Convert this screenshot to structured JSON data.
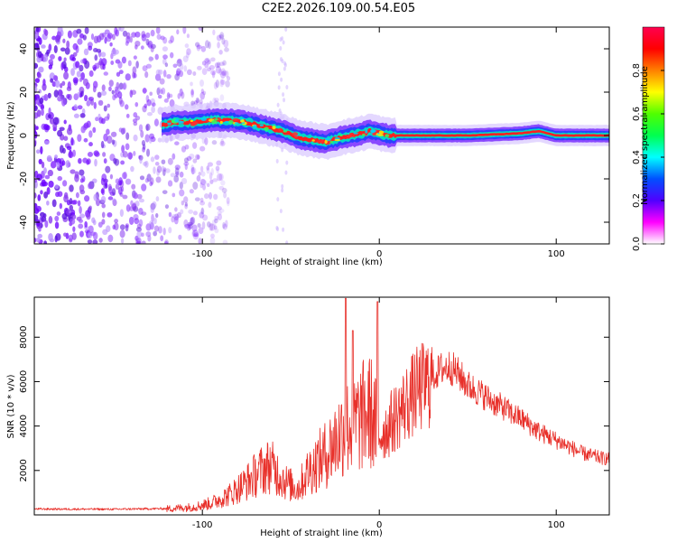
{
  "title": "C2E2.2026.109.00.54.E05",
  "chart_data": [
    {
      "type": "heatmap",
      "name": "spectrogram",
      "xlabel": "Height of straight line (km)",
      "ylabel": "Frequency (Hz)",
      "xlim": [
        -195,
        130
      ],
      "ylim": [
        -50,
        50
      ],
      "xticks": [
        -100,
        0,
        100
      ],
      "xtick_labels": [
        "-100",
        "0",
        "100"
      ],
      "yticks": [
        -40,
        -20,
        0,
        20,
        40
      ],
      "ytick_labels": [
        "-40",
        "-20",
        "0",
        "20",
        "40"
      ],
      "ridge": {
        "x": [
          -123,
          -115,
          -105,
          -95,
          -85,
          -75,
          -65,
          -55,
          -45,
          -38,
          -30,
          -22,
          -15,
          -10,
          -5,
          0,
          5,
          20,
          50,
          80,
          90,
          95,
          100,
          130
        ],
        "y": [
          5,
          6,
          6,
          7,
          7,
          6,
          4,
          2,
          -1,
          -2,
          -3,
          -1,
          0,
          1,
          2,
          1,
          0,
          0,
          0,
          1,
          2,
          1,
          0,
          0
        ]
      },
      "noise_region_x": [
        -195,
        -85
      ]
    },
    {
      "type": "colorbar",
      "name": "amplitude-colorbar",
      "label": "Normalized spectral amplitude",
      "range": [
        0,
        1
      ],
      "ticks": [
        0.0,
        0.2,
        0.4,
        0.6,
        0.8
      ],
      "tick_labels": [
        "0.0",
        "0.2",
        "0.4",
        "0.6",
        "0.8"
      ],
      "colors": [
        "#ffffff",
        "#ff00ff",
        "#5000ff",
        "#0050ff",
        "#00ffff",
        "#00ff50",
        "#50ff00",
        "#ffff00",
        "#ff8000",
        "#ff0000",
        "#ff0050"
      ]
    },
    {
      "type": "line",
      "name": "snr-series",
      "xlabel": "Height of straight line (km)",
      "ylabel": "SNR (10 * v/v)",
      "xlim": [
        -195,
        130
      ],
      "ylim": [
        0,
        9800
      ],
      "xticks": [
        -100,
        0,
        100
      ],
      "xtick_labels": [
        "-100",
        "0",
        "100"
      ],
      "yticks": [
        2000,
        4000,
        6000,
        8000
      ],
      "ytick_labels": [
        "2000",
        "4000",
        "6000",
        "8000"
      ],
      "color": "#e8302a",
      "envelope": {
        "x": [
          -195,
          -150,
          -120,
          -105,
          -95,
          -85,
          -75,
          -68,
          -62,
          -58,
          -52,
          -46,
          -40,
          -35,
          -30,
          -25,
          -20,
          -15,
          -10,
          -5,
          0,
          5,
          10,
          20,
          30,
          35,
          40,
          45,
          50,
          55,
          60,
          65,
          70,
          75,
          80,
          85,
          90,
          95,
          100,
          105,
          110,
          115,
          120,
          125,
          130
        ],
        "y": [
          270,
          260,
          290,
          380,
          560,
          950,
          1550,
          2050,
          2350,
          2050,
          1500,
          1250,
          2100,
          2500,
          2900,
          3500,
          4100,
          4250,
          4650,
          4950,
          3700,
          4100,
          4650,
          5700,
          6300,
          6650,
          6750,
          6400,
          5900,
          5650,
          5400,
          5100,
          4900,
          4600,
          4400,
          4100,
          3800,
          3600,
          3400,
          3200,
          3000,
          2800,
          2700,
          2600,
          2550
        ]
      },
      "spikes": [
        {
          "x": -19,
          "y": 9750
        },
        {
          "x": -15,
          "y": 8300
        },
        {
          "x": -1,
          "y": 9600
        }
      ]
    }
  ]
}
